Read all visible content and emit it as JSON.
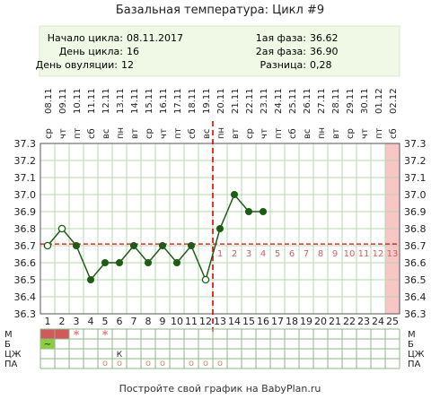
{
  "title": "Базальная температура: Цикл #9",
  "info": {
    "start_label": "Начало цикла:",
    "start_value": "08.11.2017",
    "day_label": "День цикла:",
    "day_value": "16",
    "ovulation_label": "День овуляции:",
    "ovulation_value": "12",
    "phase1_label": "1ая фаза:",
    "phase1_value": "36.62",
    "phase2_label": "2ая фаза:",
    "phase2_value": "36.90",
    "diff_label": "Разница:",
    "diff_value": "0,28"
  },
  "footer": "Постройте свой график на BabyPlan.ru",
  "colors": {
    "header_bg": "#f0f8e6",
    "line": "#1e5c14",
    "coverline": "#e00000",
    "ovulation": "#e00000",
    "grid": "#b8d4b0",
    "highlight": "#f9c6c6",
    "period": "#d05a5a",
    "discharge_green": "#8ccf3c",
    "symbol": "#e08080",
    "phase_numbers": "#d06060"
  },
  "chart_data": {
    "type": "line",
    "title": "Базальная температура: Цикл #9",
    "days": [
      1,
      2,
      3,
      4,
      5,
      6,
      7,
      8,
      9,
      10,
      11,
      12,
      13,
      14,
      15,
      16,
      17,
      18,
      19,
      20,
      21,
      22,
      23,
      24,
      25
    ],
    "dates": [
      "08.11",
      "09.11",
      "10.11",
      "11.11",
      "12.11",
      "13.11",
      "14.11",
      "15.11",
      "16.11",
      "17.11",
      "18.11",
      "19.11",
      "20.11",
      "21.11",
      "22.11",
      "23.11",
      "24.11",
      "25.11",
      "26.11",
      "27.11",
      "28.11",
      "29.11",
      "30.11",
      "01.12",
      "02.12"
    ],
    "weekdays": [
      "ср",
      "чт",
      "пт",
      "сб",
      "вс",
      "пн",
      "вт",
      "ср",
      "чт",
      "пт",
      "сб",
      "вс",
      "пн",
      "вт",
      "ср",
      "чт",
      "пт",
      "сб",
      "вс",
      "пн",
      "вт",
      "ср",
      "чт",
      "пт",
      "сб"
    ],
    "temperatures": [
      36.7,
      36.8,
      36.7,
      36.5,
      36.6,
      36.6,
      36.7,
      36.6,
      36.7,
      36.6,
      36.7,
      36.5,
      36.8,
      37.0,
      36.9,
      36.9
    ],
    "hollow_points_days": [
      1,
      2,
      12
    ],
    "ylim": [
      36.3,
      37.3
    ],
    "yticks": [
      "36.3",
      "36.4",
      "36.5",
      "36.6",
      "36.7",
      "36.8",
      "36.9",
      "37.0",
      "37.1",
      "37.2",
      "37.3"
    ],
    "coverline": 36.71,
    "ovulation_day": 12,
    "highlight_day": 25,
    "luteal_numbers": [
      "1",
      "2",
      "3",
      "4",
      "5",
      "6",
      "7",
      "8",
      "9",
      "10",
      "11",
      "12",
      "13"
    ],
    "grid": true
  },
  "symptoms": {
    "row_labels": [
      "М",
      "Б",
      "ЦЖ",
      "ПА"
    ],
    "menstruation_days": [
      1,
      2
    ],
    "stars": [
      {
        "day": 3,
        "text": "*"
      },
      {
        "day": 5,
        "text": "*"
      }
    ],
    "discharge": [
      {
        "day": 1,
        "text": "~"
      }
    ],
    "cervical": [
      {
        "day": 6,
        "text": "К"
      }
    ],
    "pa": [
      {
        "day": 5,
        "text": "o"
      },
      {
        "day": 6,
        "text": "o"
      },
      {
        "day": 8,
        "text": "o"
      },
      {
        "day": 9,
        "text": "o"
      },
      {
        "day": 11,
        "text": "o"
      },
      {
        "day": 12,
        "text": "o"
      },
      {
        "day": 13,
        "text": "o"
      }
    ]
  }
}
